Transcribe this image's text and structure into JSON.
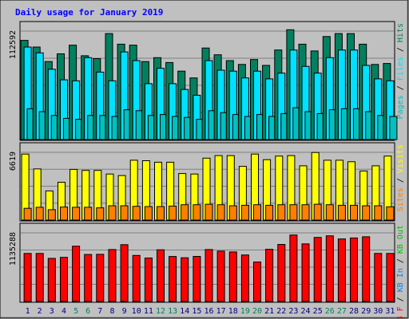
{
  "colors": {
    "background": "#C0C0C0",
    "title": "#0000FF",
    "hits": "#00805F",
    "files": "#00E0FF",
    "pages": "#00C0C0",
    "visits": "#FFFF00",
    "sites": "#FF8000",
    "kb_f": "#FF0000",
    "kb_in": "#0080FF",
    "kb_out": "#00C000",
    "weekend_label": "#00805F",
    "weekday_label": "#000080"
  },
  "chart_data": {
    "type": "bar",
    "title": "Daily usage for January 2019",
    "categories": [
      "1",
      "2",
      "3",
      "4",
      "5",
      "6",
      "7",
      "8",
      "9",
      "10",
      "11",
      "12",
      "13",
      "14",
      "15",
      "16",
      "17",
      "18",
      "19",
      "20",
      "21",
      "22",
      "23",
      "24",
      "25",
      "26",
      "27",
      "28",
      "29",
      "30",
      "31"
    ],
    "weekend_days": [
      "5",
      "6",
      "12",
      "13",
      "19",
      "20",
      "26",
      "27"
    ],
    "panels": [
      {
        "max_label": "112592",
        "ylim": [
          0,
          112592
        ],
        "legend": [
          {
            "text": "Pages",
            "color_key": "pages"
          },
          {
            "text": "Files",
            "color_key": "files"
          },
          {
            "text": "Hits",
            "color_key": "hits"
          }
        ],
        "series": [
          {
            "name": "Hits",
            "color_key": "hits",
            "values": [
              103000,
              96000,
              81000,
              89000,
              98000,
              87000,
              84000,
              110000,
              99000,
              98000,
              81000,
              85000,
              80000,
              71000,
              64000,
              95000,
              88000,
              82000,
              78000,
              83000,
              77000,
              93000,
              114000,
              99000,
              92000,
              107000,
              110000,
              110000,
              99000,
              78000,
              79000
            ]
          },
          {
            "name": "Files",
            "color_key": "files",
            "values": [
              96000,
              90000,
              73000,
              62000,
              61000,
              85000,
              70000,
              61000,
              91000,
              82000,
              58000,
              74000,
              58000,
              52000,
              46000,
              82000,
              72000,
              71000,
              64000,
              71000,
              63000,
              69000,
              93000,
              76000,
              69000,
              85000,
              93000,
              93000,
              77000,
              63000,
              61000
            ]
          },
          {
            "name": "Pages",
            "color_key": "pages",
            "values": [
              32000,
              29000,
              25000,
              22000,
              21000,
              25000,
              25000,
              24000,
              31000,
              30000,
              25000,
              26000,
              24000,
              23000,
              21000,
              30000,
              28000,
              26000,
              24000,
              26000,
              24000,
              27000,
              33000,
              29000,
              27000,
              31000,
              32000,
              32000,
              29000,
              25000,
              24000
            ]
          }
        ]
      },
      {
        "max_label": "6619",
        "ylim": [
          0,
          6619
        ],
        "legend": [
          {
            "text": "Sites",
            "color_key": "sites"
          },
          {
            "text": "Visits",
            "color_key": "visits"
          }
        ],
        "series": [
          {
            "name": "Visits",
            "color_key": "visits",
            "values": [
              6450,
              5000,
              2850,
              3700,
              4950,
              4850,
              4850,
              4500,
              4350,
              5850,
              5800,
              5650,
              5650,
              4550,
              4500,
              6050,
              6300,
              6300,
              5250,
              6450,
              5900,
              6250,
              6300,
              5300,
              6600,
              5850,
              5850,
              5700,
              4800,
              5300,
              6250
            ]
          },
          {
            "name": "Sites",
            "color_key": "sites",
            "values": [
              1150,
              1250,
              1020,
              1280,
              1250,
              1250,
              1200,
              1400,
              1400,
              1350,
              1320,
              1320,
              1370,
              1500,
              1500,
              1550,
              1500,
              1400,
              1450,
              1500,
              1450,
              1500,
              1500,
              1500,
              1550,
              1500,
              1450,
              1450,
              1400,
              1400,
              1300
            ]
          }
        ]
      },
      {
        "max_label": "1135288",
        "ylim": [
          0,
          1135288
        ],
        "legend": [
          {
            "text": "KB F",
            "color_key": "kb_f"
          },
          {
            "text": "KB In",
            "color_key": "kb_in"
          },
          {
            "text": "KB Out",
            "color_key": "kb_out"
          }
        ],
        "series": [
          {
            "name": "KB F",
            "color_key": "kb_f",
            "values": [
              795000,
              795000,
              713000,
              730000,
              915000,
              778000,
              780000,
              860000,
              940000,
              762000,
              720000,
              855000,
              745000,
              723000,
              746000,
              860000,
              833000,
              820000,
              769000,
              654000,
              864000,
              944000,
              1100000,
              953000,
              1060000,
              1086000,
              1035000,
              1051000,
              1070000,
              795000,
              795000
            ]
          }
        ]
      }
    ]
  }
}
